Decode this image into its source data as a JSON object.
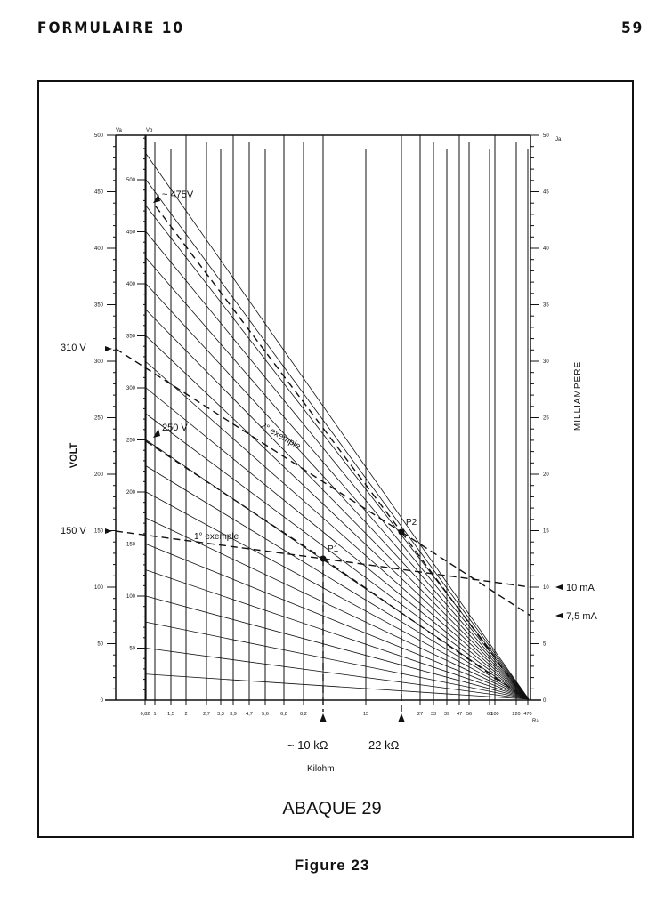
{
  "header": {
    "title": "FORMULAIRE 10",
    "page_number": "59"
  },
  "diagram": {
    "caption": "ABAQUE 29",
    "figure": "Figure 23",
    "left_axis": {
      "label": "VOLT",
      "va_name": "Va",
      "vb_name": "Vb",
      "va_ticks": [
        "500",
        "450",
        "400",
        "350",
        "300",
        "250",
        "200",
        "150",
        "100",
        "50",
        "0"
      ],
      "vb_ticks": [
        "500",
        "450",
        "400",
        "350",
        "300",
        "250",
        "200",
        "150",
        "100",
        "50"
      ]
    },
    "right_axis": {
      "label": "MILLIAMPERE",
      "name": "Ja",
      "ticks": [
        "50",
        "45",
        "40",
        "35",
        "30",
        "25",
        "20",
        "15",
        "10",
        "5",
        "0"
      ]
    },
    "bottom_axis": {
      "name": "Ra",
      "unit_label": "Kilohm",
      "ticks": [
        "0,82",
        "1",
        "1,5",
        "2",
        "2,7",
        "3,3",
        "3,9",
        "4,7",
        "5,6",
        "6,8",
        "8,2",
        "15",
        "27",
        "33",
        "39",
        "47",
        "56",
        "68",
        "100",
        "220",
        "470"
      ]
    },
    "annotations": {
      "v475": "~ 475V",
      "v310": "310 V",
      "v250": "250 V",
      "v150": "150 V",
      "ma10": "10 mA",
      "ma75": "7,5 mA",
      "ex1": "1° exemple",
      "ex2": "2° exemple",
      "p1": "P1",
      "p2": "P2",
      "r10": "~ 10 kΩ",
      "r22": "22 kΩ"
    }
  }
}
